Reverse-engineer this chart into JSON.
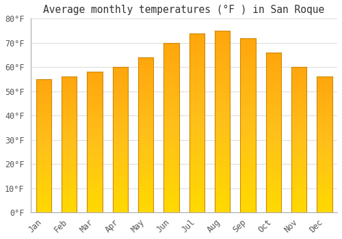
{
  "title": "Average monthly temperatures (°F ) in San Roque",
  "months": [
    "Jan",
    "Feb",
    "Mar",
    "Apr",
    "May",
    "Jun",
    "Jul",
    "Aug",
    "Sep",
    "Oct",
    "Nov",
    "Dec"
  ],
  "values": [
    55,
    56,
    58,
    60,
    64,
    70,
    74,
    75,
    72,
    66,
    60,
    56
  ],
  "bar_color_face": "#FFB300",
  "bar_color_light": "#FFD966",
  "bar_color_edge": "#CC8800",
  "background_color": "#FFFFFF",
  "plot_bg_color": "#FFFFFF",
  "ylim": [
    0,
    80
  ],
  "yticks": [
    0,
    10,
    20,
    30,
    40,
    50,
    60,
    70,
    80
  ],
  "ylabel_suffix": "°F",
  "title_fontsize": 10.5,
  "tick_fontsize": 8.5,
  "grid_color": "#DDDDDD",
  "bar_width": 0.6,
  "spine_color": "#AAAAAA"
}
